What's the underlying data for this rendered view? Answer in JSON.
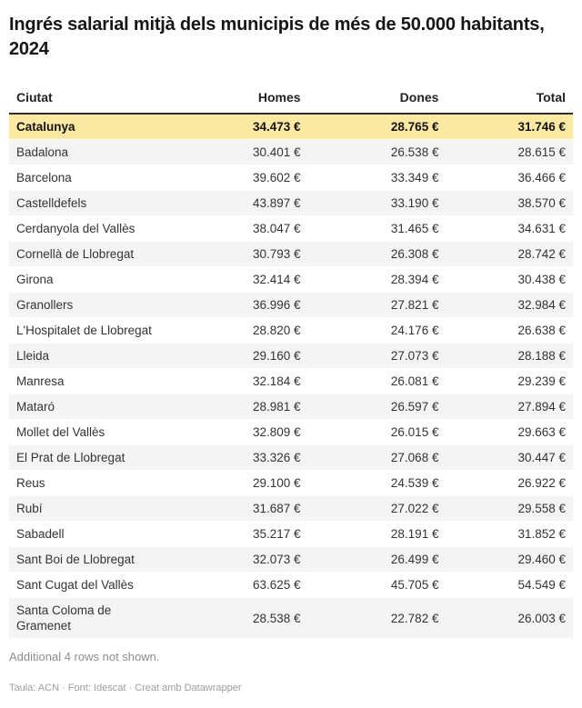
{
  "chart_data": {
    "type": "table",
    "title": "Ingrés salarial mitjà dels municipis de més de 50.000 habitants, 2024",
    "columns": [
      "Ciutat",
      "Homes",
      "Dones",
      "Total"
    ],
    "highlight_row": "Catalunya",
    "rows": [
      [
        "Catalunya",
        "34.473 €",
        "28.765 €",
        "31.746 €"
      ],
      [
        "Badalona",
        "30.401 €",
        "26.538 €",
        "28.615 €"
      ],
      [
        "Barcelona",
        "39.602 €",
        "33.349 €",
        "36.466 €"
      ],
      [
        "Castelldefels",
        "43.897 €",
        "33.190 €",
        "38.570 €"
      ],
      [
        "Cerdanyola del Vallès",
        "38.047 €",
        "31.465 €",
        "34.631 €"
      ],
      [
        "Cornellà de Llobregat",
        "30.793 €",
        "26.308 €",
        "28.742 €"
      ],
      [
        "Girona",
        "32.414 €",
        "28.394 €",
        "30.438 €"
      ],
      [
        "Granollers",
        "36.996 €",
        "27.821 €",
        "32.984 €"
      ],
      [
        "L'Hospitalet de Llobregat",
        "28.820 €",
        "24.176 €",
        "26.638 €"
      ],
      [
        "Lleida",
        "29.160 €",
        "27.073 €",
        "28.188 €"
      ],
      [
        "Manresa",
        "32.184 €",
        "26.081 €",
        "29.239 €"
      ],
      [
        "Mataró",
        "28.981 €",
        "26.597 €",
        "27.894 €"
      ],
      [
        "Mollet del Vallès",
        "32.809 €",
        "26.015 €",
        "29.663 €"
      ],
      [
        "El Prat de Llobregat",
        "33.326 €",
        "27.068 €",
        "30.447 €"
      ],
      [
        "Reus",
        "29.100 €",
        "24.539 €",
        "26.922 €"
      ],
      [
        "Rubí",
        "31.687 €",
        "27.022 €",
        "29.558 €"
      ],
      [
        "Sabadell",
        "35.217 €",
        "28.191 €",
        "31.852 €"
      ],
      [
        "Sant Boi de Llobregat",
        "32.073 €",
        "26.499 €",
        "29.460 €"
      ],
      [
        "Sant Cugat del Vallès",
        "63.625 €",
        "45.705 €",
        "54.549 €"
      ],
      [
        "Santa Coloma de Gramenet",
        "28.538 €",
        "22.782 €",
        "26.003 €"
      ]
    ]
  },
  "footer": {
    "rows_note": "Additional 4 rows not shown.",
    "attribution": "Taula: ACN · Font: Idescat · Creat amb Datawrapper"
  },
  "colors": {
    "highlight_bg": "#FAE99F",
    "stripe_bg": "#F4F4F4",
    "header_border": "#2B2B2B",
    "title_text": "#161616",
    "body_text": "#333333",
    "note_text": "#8E8E8E"
  }
}
